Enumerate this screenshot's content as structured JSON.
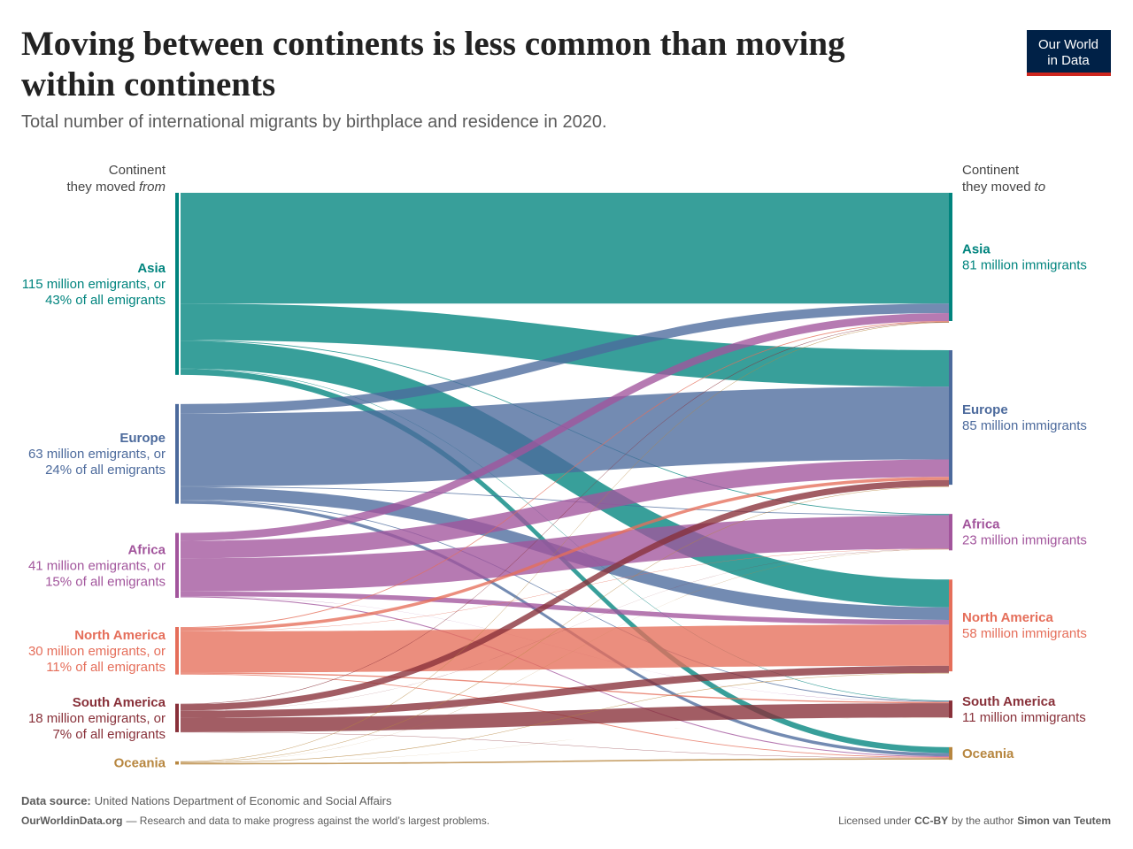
{
  "chart_data": {
    "type": "sankey",
    "title_lines": [
      "Moving between continents is less common than moving",
      "within continents"
    ],
    "subtitle": "Total number of international migrants by birthplace and residence in 2020.",
    "left_header": {
      "line1": "Continent",
      "line2": "they moved",
      "emphasis": "from"
    },
    "right_header": {
      "line1": "Continent",
      "line2": "they moved",
      "emphasis": "to"
    },
    "sources": [
      {
        "name": "Asia",
        "color": "#00847e",
        "value": 115,
        "lines": [
          "115 million emigrants, or",
          "43% of all emigrants"
        ]
      },
      {
        "name": "Europe",
        "color": "#4c6a9c",
        "value": 63,
        "lines": [
          "63 million emigrants, or",
          "24% of all emigrants"
        ]
      },
      {
        "name": "Africa",
        "color": "#a2559c",
        "value": 41,
        "lines": [
          "41 million emigrants, or",
          "15% of all emigrants"
        ]
      },
      {
        "name": "North America",
        "color": "#e56e5a",
        "value": 30,
        "lines": [
          "30 million emigrants, or",
          "11% of all emigrants"
        ]
      },
      {
        "name": "South America",
        "color": "#883039",
        "value": 18,
        "lines": [
          "18 million emigrants, or",
          "7% of all emigrants"
        ]
      },
      {
        "name": "Oceania",
        "color": "#b7863f",
        "value": 2,
        "lines": []
      }
    ],
    "targets": [
      {
        "name": "Asia",
        "color": "#00847e",
        "value": 81,
        "lines": [
          "81 million immigrants"
        ]
      },
      {
        "name": "Europe",
        "color": "#4c6a9c",
        "value": 85,
        "lines": [
          "85 million immigrants"
        ]
      },
      {
        "name": "Africa",
        "color": "#a2559c",
        "value": 23,
        "lines": [
          "23 million immigrants"
        ]
      },
      {
        "name": "North America",
        "color": "#e56e5a",
        "value": 58,
        "lines": [
          "58 million immigrants"
        ]
      },
      {
        "name": "South America",
        "color": "#883039",
        "value": 11,
        "lines": [
          "11 million immigrants"
        ]
      },
      {
        "name": "Oceania",
        "color": "#b7863f",
        "value": 8,
        "lines": []
      }
    ],
    "flows": [
      [
        70,
        23,
        0.5,
        17.5,
        0.3,
        3.7
      ],
      [
        6,
        46,
        0.5,
        8,
        0.5,
        2
      ],
      [
        5,
        11,
        21,
        3,
        0.1,
        0.6
      ],
      [
        0.5,
        2,
        0.2,
        26,
        0.8,
        0.5
      ],
      [
        0.3,
        4,
        0.1,
        4.5,
        9,
        0.2
      ],
      [
        0.3,
        0.3,
        0.1,
        0.3,
        0.05,
        0.9
      ]
    ],
    "footer": {
      "source_label": "Data source:",
      "source": "United Nations Department of Economic and Social Affairs",
      "site": "OurWorldinData.org",
      "tagline": "— Research and data to make progress against the world’s largest problems.",
      "license_pre": "Licensed under",
      "license": "CC-BY",
      "license_mid": "by the author",
      "author": "Simon van Teutem"
    },
    "logo": [
      "Our World",
      "in Data"
    ]
  }
}
